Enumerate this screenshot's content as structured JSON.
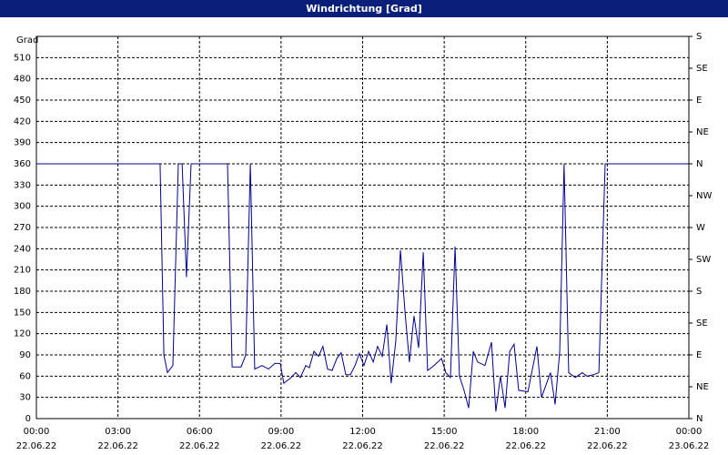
{
  "chart_data": {
    "type": "line",
    "title": "Windrichtung [Grad]",
    "y_label": "Grad",
    "color": "#00008b",
    "grid": true,
    "x": [
      0,
      4.55,
      4.69,
      4.82,
      5.02,
      5.22,
      5.36,
      5.52,
      5.69,
      7.03,
      7.2,
      7.53,
      7.7,
      7.87,
      8.03,
      8.3,
      8.54,
      8.77,
      8.97,
      9.1,
      9.37,
      9.54,
      9.71,
      9.91,
      10.04,
      10.21,
      10.38,
      10.54,
      10.71,
      10.88,
      11.05,
      11.21,
      11.38,
      11.55,
      11.72,
      11.88,
      12.05,
      12.22,
      12.39,
      12.55,
      12.72,
      12.89,
      13.05,
      13.22,
      13.39,
      13.56,
      13.72,
      13.89,
      14.06,
      14.23,
      14.39,
      14.63,
      14.9,
      15.06,
      15.23,
      15.4,
      15.56,
      15.73,
      15.9,
      16.07,
      16.23,
      16.5,
      16.74,
      16.9,
      17.07,
      17.24,
      17.41,
      17.57,
      17.74,
      18.08,
      18.41,
      18.58,
      18.91,
      19.08,
      19.25,
      19.41,
      19.58,
      19.82,
      20.08,
      20.25,
      20.49,
      20.69,
      20.92,
      21.09,
      24
    ],
    "values": [
      360,
      360,
      90,
      65,
      75,
      360,
      360,
      200,
      360,
      360,
      73,
      73,
      90,
      360,
      70,
      75,
      70,
      78,
      78,
      50,
      58,
      65,
      58,
      75,
      72,
      95,
      88,
      102,
      70,
      68,
      85,
      93,
      62,
      62,
      75,
      92,
      75,
      95,
      80,
      102,
      88,
      133,
      50,
      110,
      238,
      150,
      80,
      145,
      100,
      235,
      68,
      75,
      85,
      65,
      58,
      243,
      60,
      40,
      15,
      95,
      80,
      75,
      108,
      10,
      60,
      15,
      95,
      105,
      40,
      38,
      102,
      30,
      65,
      20,
      95,
      360,
      65,
      58,
      65,
      60,
      62,
      65,
      360,
      360,
      360
    ],
    "xlim": [
      0,
      24
    ],
    "xticks": [
      {
        "value": 0,
        "label": "00:00",
        "date": "22.06.22"
      },
      {
        "value": 3,
        "label": "03:00",
        "date": "22.06.22"
      },
      {
        "value": 6,
        "label": "06:00",
        "date": "22.06.22"
      },
      {
        "value": 9,
        "label": "09:00",
        "date": "22.06.22"
      },
      {
        "value": 12,
        "label": "12:00",
        "date": "22.06.22"
      },
      {
        "value": 15,
        "label": "15:00",
        "date": "22.06.22"
      },
      {
        "value": 18,
        "label": "18:00",
        "date": "22.06.22"
      },
      {
        "value": 21,
        "label": "21:00",
        "date": "22.06.22"
      },
      {
        "value": 24,
        "label": "00:00",
        "date": "23.06.22"
      }
    ],
    "ylim": [
      0,
      540
    ],
    "yticks": [
      0,
      30,
      60,
      90,
      120,
      150,
      180,
      210,
      240,
      270,
      300,
      330,
      360,
      390,
      420,
      450,
      480,
      510
    ],
    "y2lim": [
      0,
      540
    ],
    "y2ticks": [
      {
        "value": 0,
        "label": "N"
      },
      {
        "value": 45,
        "label": "NE"
      },
      {
        "value": 90,
        "label": "E"
      },
      {
        "value": 135,
        "label": "SE"
      },
      {
        "value": 180,
        "label": "S"
      },
      {
        "value": 225,
        "label": "SW"
      },
      {
        "value": 270,
        "label": "W"
      },
      {
        "value": 315,
        "label": "NW"
      },
      {
        "value": 360,
        "label": "N"
      },
      {
        "value": 405,
        "label": "NE"
      },
      {
        "value": 450,
        "label": "E"
      },
      {
        "value": 495,
        "label": "SE"
      },
      {
        "value": 540,
        "label": "S"
      }
    ]
  }
}
